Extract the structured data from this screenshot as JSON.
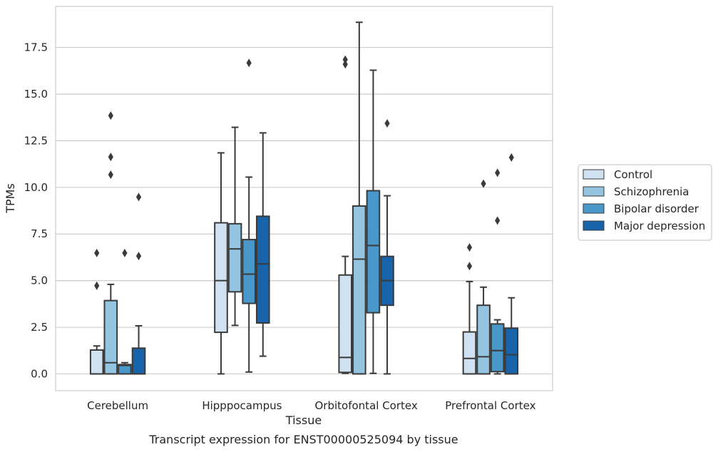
{
  "chart_data": {
    "type": "box",
    "title": "",
    "caption": "Transcript expression for ENST00000525094 by tissue",
    "xlabel": "Tissue",
    "ylabel": "TPMs",
    "ylim": [
      -0.9,
      19.7
    ],
    "yticks": [
      "0.0",
      "2.5",
      "5.0",
      "7.5",
      "10.0",
      "12.5",
      "15.0",
      "17.5"
    ],
    "grid": "horizontal",
    "legend_position": "right",
    "categories": [
      "Cerebellum",
      "Hipppocampus",
      "Orbitofontal Cortex",
      "Prefrontal Cortex"
    ],
    "series": [
      {
        "name": "Control",
        "color": "#d0e1f2",
        "boxes": [
          {
            "whislo": 0.0,
            "q1": 0.0,
            "median": 0.0,
            "q3": 1.28,
            "whishi": 1.5,
            "fliers": [
              4.73,
              6.48
            ]
          },
          {
            "whislo": 0.0,
            "q1": 2.23,
            "median": 5.0,
            "q3": 8.1,
            "whishi": 11.85,
            "fliers": []
          },
          {
            "whislo": 0.03,
            "q1": 0.08,
            "median": 0.88,
            "q3": 5.3,
            "whishi": 6.3,
            "fliers": [
              16.6,
              16.85
            ]
          },
          {
            "whislo": 0.0,
            "q1": 0.0,
            "median": 0.83,
            "q3": 2.25,
            "whishi": 4.95,
            "fliers": [
              5.78,
              6.78
            ]
          }
        ]
      },
      {
        "name": "Schizophrenia",
        "color": "#94c4df",
        "boxes": [
          {
            "whislo": 0.0,
            "q1": 0.0,
            "median": 0.6,
            "q3": 3.93,
            "whishi": 4.8,
            "fliers": [
              10.68,
              11.63,
              13.85
            ]
          },
          {
            "whislo": 2.6,
            "q1": 4.4,
            "median": 6.7,
            "q3": 8.05,
            "whishi": 13.22,
            "fliers": []
          },
          {
            "whislo": 0.0,
            "q1": 0.0,
            "median": 6.15,
            "q3": 9.0,
            "whishi": 18.85,
            "fliers": []
          },
          {
            "whislo": 0.0,
            "q1": 0.0,
            "median": 0.92,
            "q3": 3.68,
            "whishi": 4.65,
            "fliers": [
              10.2
            ]
          }
        ]
      },
      {
        "name": "Bipolar disorder",
        "color": "#4a98c9",
        "boxes": [
          {
            "whislo": 0.0,
            "q1": 0.0,
            "median": 0.45,
            "q3": 0.5,
            "whishi": 0.6,
            "fliers": [
              6.48
            ]
          },
          {
            "whislo": 0.1,
            "q1": 3.78,
            "median": 5.35,
            "q3": 7.2,
            "whishi": 10.55,
            "fliers": [
              16.67
            ]
          },
          {
            "whislo": 0.03,
            "q1": 3.28,
            "median": 6.88,
            "q3": 9.82,
            "whishi": 16.28,
            "fliers": []
          },
          {
            "whislo": 0.0,
            "q1": 0.12,
            "median": 1.25,
            "q3": 2.68,
            "whishi": 2.9,
            "fliers": [
              8.22,
              10.78
            ]
          }
        ]
      },
      {
        "name": "Major depression",
        "color": "#1764ab",
        "boxes": [
          {
            "whislo": 0.0,
            "q1": 0.0,
            "median": 0.0,
            "q3": 1.38,
            "whishi": 2.58,
            "fliers": [
              6.32,
              9.48
            ]
          },
          {
            "whislo": 0.95,
            "q1": 2.73,
            "median": 5.9,
            "q3": 8.45,
            "whishi": 12.92,
            "fliers": []
          },
          {
            "whislo": 0.0,
            "q1": 3.68,
            "median": 5.0,
            "q3": 6.3,
            "whishi": 9.55,
            "fliers": [
              13.43
            ]
          },
          {
            "whislo": 0.0,
            "q1": 0.0,
            "median": 1.03,
            "q3": 2.45,
            "whishi": 4.08,
            "fliers": [
              11.6
            ]
          }
        ]
      }
    ]
  }
}
